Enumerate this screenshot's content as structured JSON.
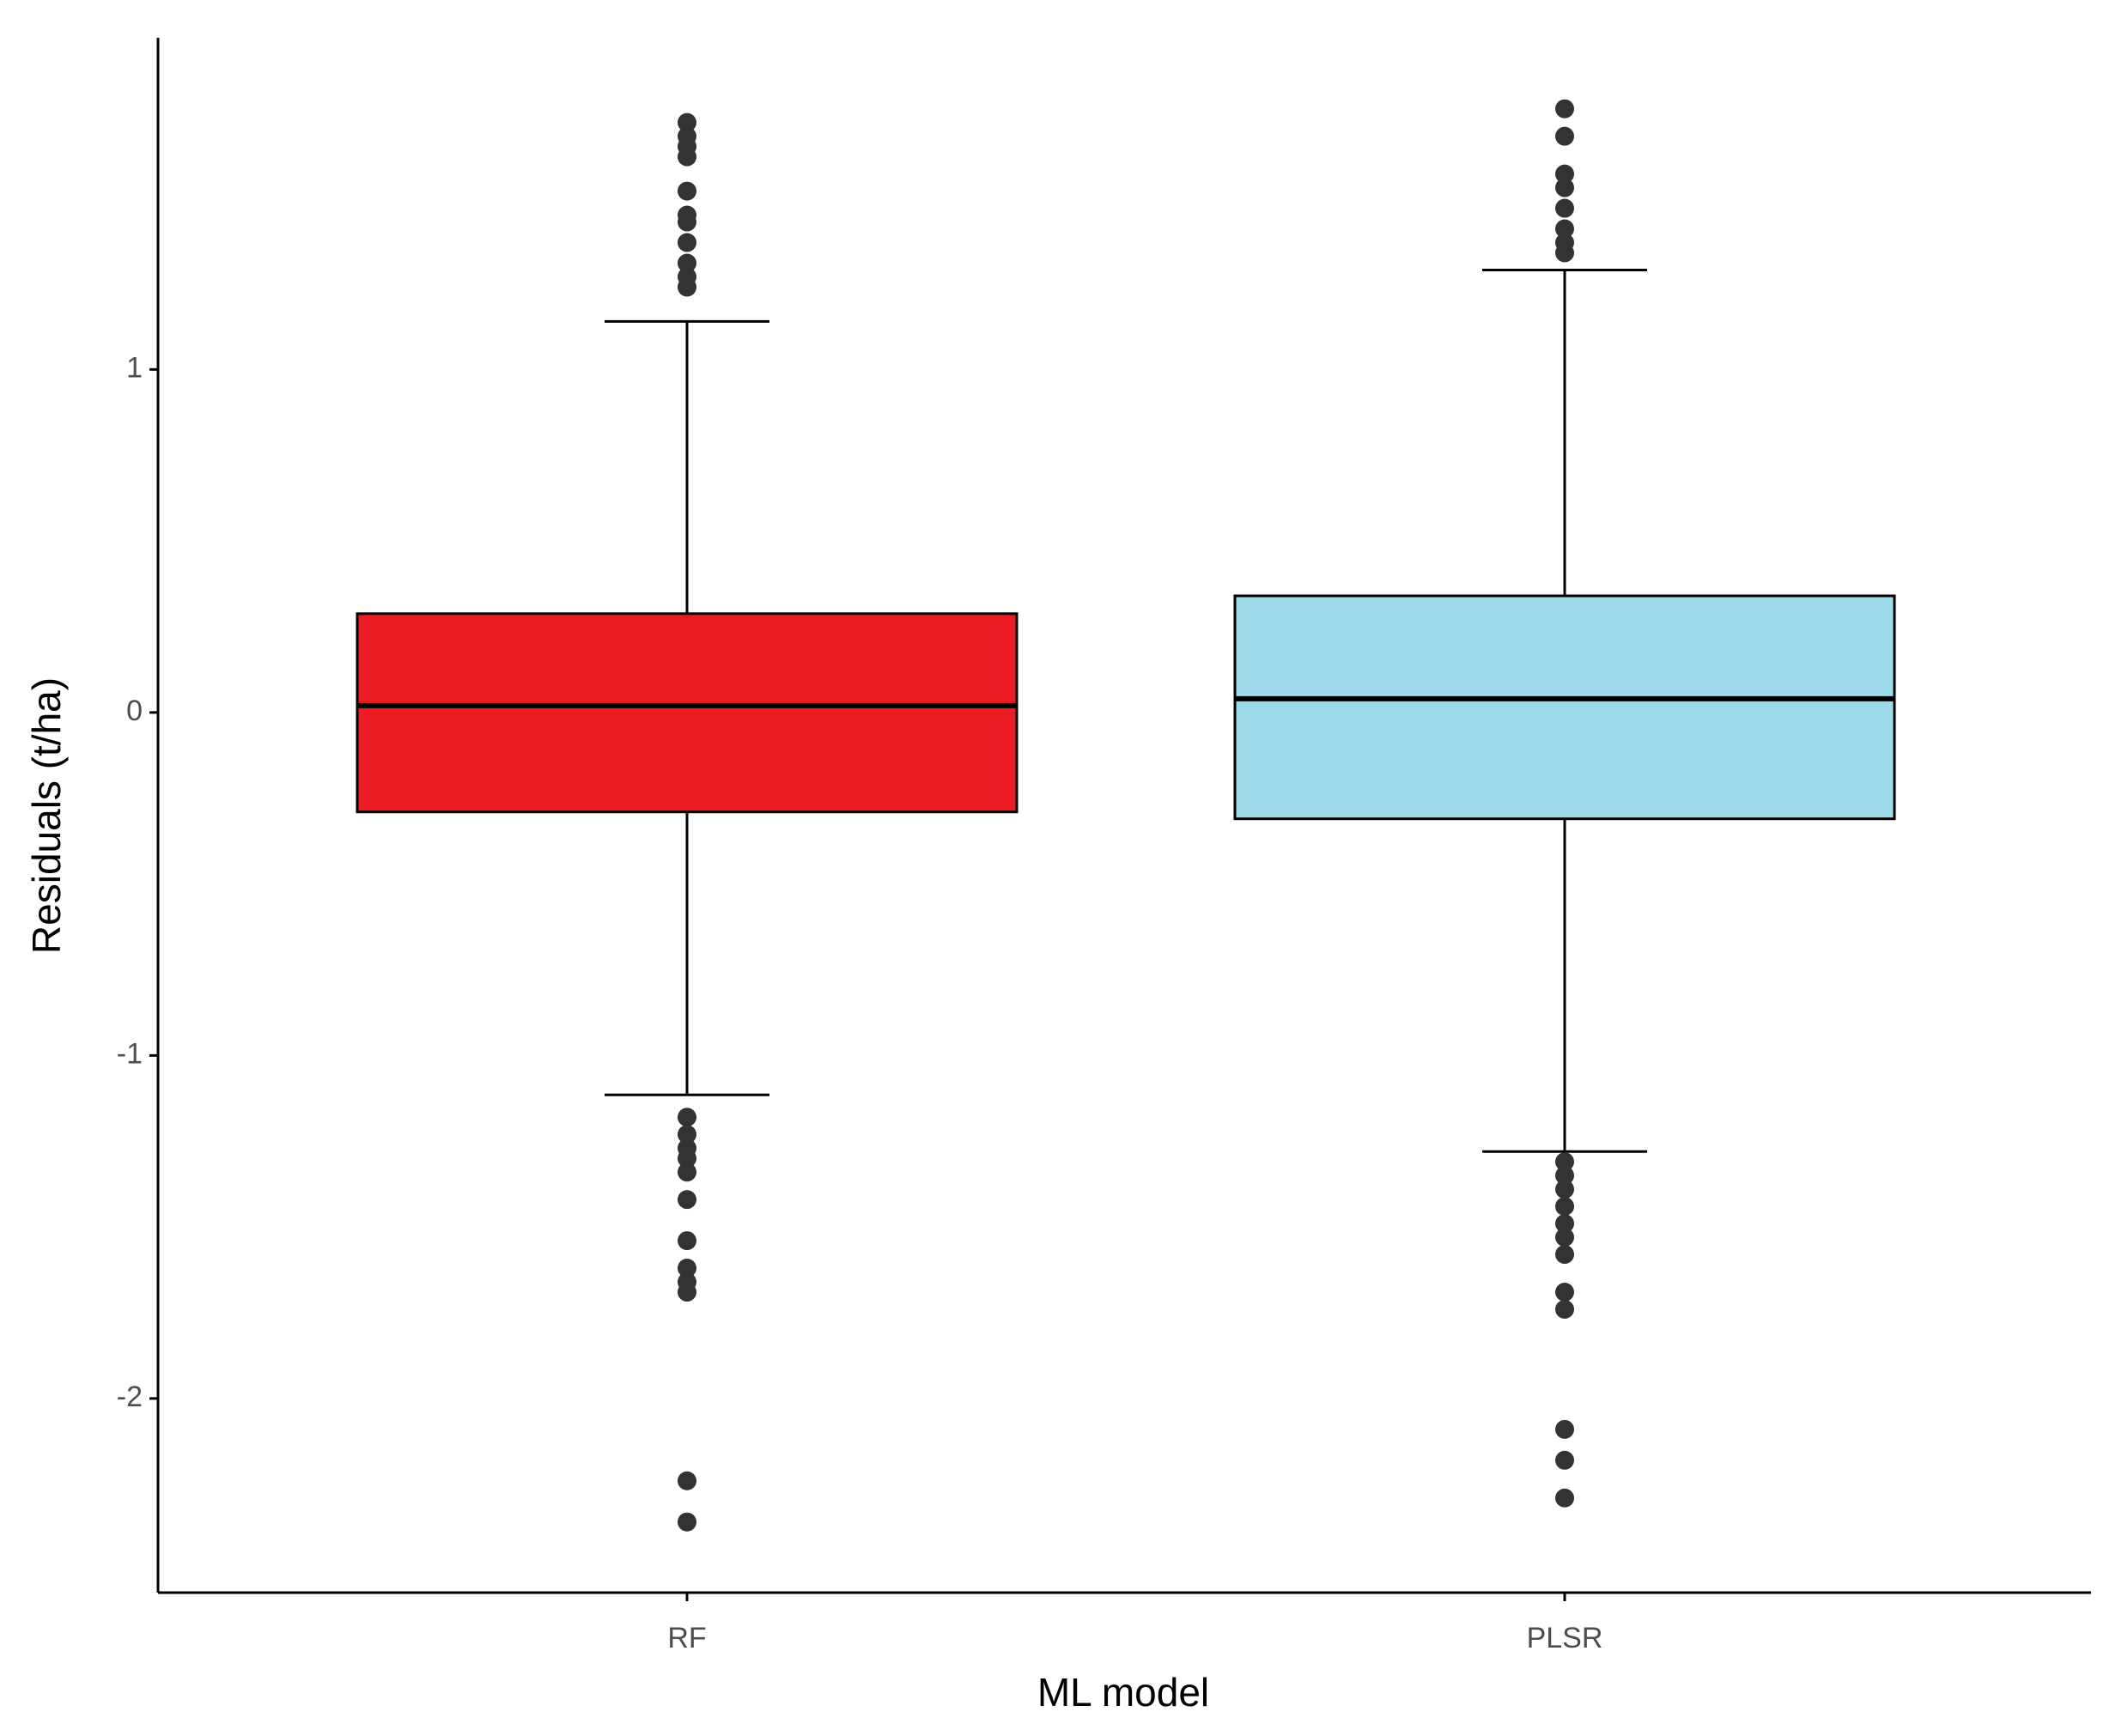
{
  "chart_data": {
    "type": "box",
    "y_label": "Residuals (t/ha)",
    "x_label": "ML model",
    "categories": [
      "RF",
      "PLSR"
    ],
    "boxes": [
      {
        "color": "#ec1c24",
        "whisker_low": -1.115,
        "q1": -0.29,
        "median": 0.02,
        "q3": 0.288,
        "whisker_high": 1.14,
        "outliers": [
          1.72,
          1.68,
          1.65,
          1.62,
          1.52,
          1.45,
          1.43,
          1.37,
          1.31,
          1.27,
          1.24,
          -1.18,
          -1.23,
          -1.27,
          -1.3,
          -1.34,
          -1.42,
          -1.54,
          -1.62,
          -1.66,
          -1.69,
          -2.24,
          -2.36
        ]
      },
      {
        "color": "#9ddbea",
        "whisker_low": -1.28,
        "q1": -0.31,
        "median": 0.04,
        "q3": 0.34,
        "whisker_high": 1.29,
        "outliers": [
          1.76,
          1.68,
          1.57,
          1.53,
          1.47,
          1.41,
          1.37,
          1.34,
          -1.31,
          -1.35,
          -1.39,
          -1.44,
          -1.49,
          -1.53,
          -1.58,
          -1.69,
          -1.74,
          -2.09,
          -2.18,
          -2.29
        ]
      }
    ],
    "ylim": [
      -2.566,
      1.967
    ],
    "yticks": [
      -2,
      -1,
      0,
      1
    ],
    "outlier_color": "#333333"
  }
}
